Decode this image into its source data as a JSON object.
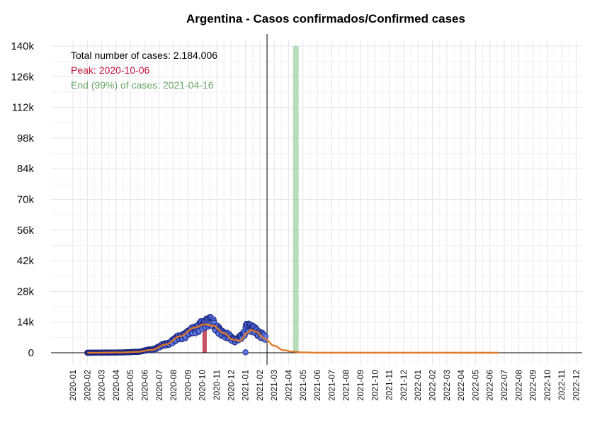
{
  "chart_data": {
    "type": "scatter",
    "title": "Argentina - Casos confirmados/Confirmed cases",
    "xlabel": "",
    "ylabel": "",
    "ylim": [
      0,
      140000
    ],
    "y_ticks": [
      0,
      14000,
      28000,
      42000,
      56000,
      70000,
      84000,
      98000,
      112000,
      126000,
      140000
    ],
    "y_tick_labels": [
      "0",
      "14k",
      "28k",
      "42k",
      "56k",
      "70k",
      "84k",
      "98k",
      "112k",
      "126k",
      "140k"
    ],
    "x_tick_labels": [
      "2020-01",
      "2020-02",
      "2020-03",
      "2020-04",
      "2020-05",
      "2020-06",
      "2020-07",
      "2020-08",
      "2020-09",
      "2020-10",
      "2020-11",
      "2020-12",
      "2021-01",
      "2021-02",
      "2021-03",
      "2021-04",
      "2021-05",
      "2021-06",
      "2021-07",
      "2021-08",
      "2021-09",
      "2021-10",
      "2021-11",
      "2021-12",
      "2022-01",
      "2022-02",
      "2022-03",
      "2022-04",
      "2022-05",
      "2022-06",
      "2022-07",
      "2022-08",
      "2022-09",
      "2022-10",
      "2022-11",
      "2022-12"
    ],
    "grid": true,
    "annotations": {
      "total": "Total number of cases: 2.184.006",
      "peak": "Peak: 2020-10-06",
      "end": "End (99%) of cases: 2021-04-16"
    },
    "peak_date": "2020-10-06",
    "peak_value": 13000,
    "end_date": "2021-04-16",
    "today_line_date": "2021-02-15",
    "observed_series": {
      "name": "",
      "anchors": [
        [
          "2020-02-01",
          0
        ],
        [
          "2020-03-15",
          50
        ],
        [
          "2020-04-15",
          150
        ],
        [
          "2020-05-15",
          400
        ],
        [
          "2020-06-15",
          1500
        ],
        [
          "2020-07-15",
          4000
        ],
        [
          "2020-08-15",
          7500
        ],
        [
          "2020-09-15",
          11000
        ],
        [
          "2020-10-01",
          13500
        ],
        [
          "2020-10-20",
          15500
        ],
        [
          "2020-11-01",
          11500
        ],
        [
          "2020-11-20",
          8500
        ],
        [
          "2020-12-10",
          6000
        ],
        [
          "2020-12-25",
          8000
        ],
        [
          "2021-01-05",
          12500
        ],
        [
          "2021-01-15",
          11500
        ],
        [
          "2021-02-05",
          8500
        ],
        [
          "2021-02-12",
          7000
        ]
      ]
    },
    "fitted_series": {
      "name": "",
      "anchors": [
        [
          "2020-02-01",
          0
        ],
        [
          "2020-04-15",
          150
        ],
        [
          "2020-05-15",
          400
        ],
        [
          "2020-06-15",
          1300
        ],
        [
          "2020-07-15",
          3800
        ],
        [
          "2020-08-15",
          7500
        ],
        [
          "2020-09-15",
          11500
        ],
        [
          "2020-10-06",
          13000
        ],
        [
          "2020-10-25",
          12300
        ],
        [
          "2020-11-15",
          9000
        ],
        [
          "2020-12-05",
          6000
        ],
        [
          "2020-12-20",
          5500
        ],
        [
          "2021-01-05",
          9000
        ],
        [
          "2021-01-12",
          10500
        ],
        [
          "2021-01-25",
          9500
        ],
        [
          "2021-02-10",
          6500
        ],
        [
          "2021-03-01",
          3200
        ],
        [
          "2021-03-20",
          1200
        ],
        [
          "2021-04-10",
          500
        ],
        [
          "2021-05-01",
          150
        ],
        [
          "2021-06-01",
          30
        ],
        [
          "2022-06-20",
          0
        ]
      ]
    },
    "colors": {
      "points_fill": "#5a78e0",
      "points_stroke": "#1a237e",
      "fit_line": "#e0792a",
      "peak_bar": "#c0304a",
      "end_bar": "#a8d4a8",
      "peak_text": "#c0103a",
      "end_text": "#6aa86a",
      "total_text": "#000000"
    }
  }
}
